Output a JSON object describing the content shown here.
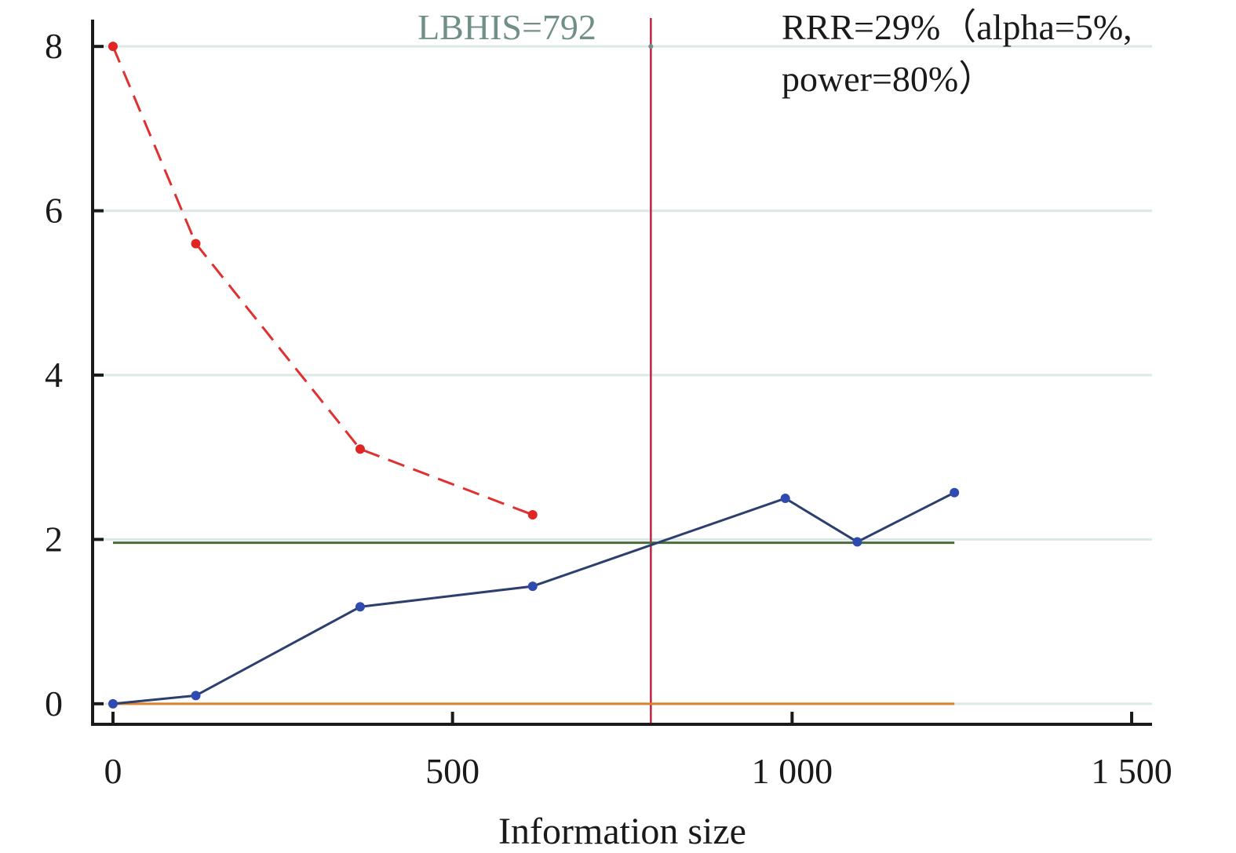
{
  "chart_data": {
    "type": "line",
    "xlabel": "Information size",
    "ylabel": "",
    "xlim": [
      -30,
      1530
    ],
    "ylim": [
      -0.25,
      8.25
    ],
    "x_ticks": [
      0,
      500,
      1000,
      1500
    ],
    "x_tick_labels": [
      "0",
      "500",
      "1 000",
      "1 500"
    ],
    "y_ticks": [
      0,
      2,
      4,
      6,
      8
    ],
    "y_tick_labels": [
      "0",
      "2",
      "4",
      "6",
      "8"
    ],
    "grid": true,
    "series": [
      {
        "role": "z_curve",
        "color": "#2d3f6e",
        "marker_color": "#2f4bb0",
        "dash": "solid",
        "x": [
          0,
          122,
          364,
          618,
          990,
          1096,
          1239
        ],
        "y": [
          0,
          0.1,
          1.18,
          1.43,
          2.5,
          1.97,
          2.57
        ]
      },
      {
        "role": "monitoring_boundary",
        "color": "#e03030",
        "marker_color": "#e02525",
        "dash": "dashed",
        "x": [
          0,
          122,
          364,
          618
        ],
        "y": [
          8,
          5.6,
          3.1,
          2.3
        ]
      },
      {
        "role": "conventional_boundary",
        "color": "#4a6b3a",
        "dash": "solid",
        "x": [
          0,
          1239
        ],
        "y": [
          1.96,
          1.96
        ]
      },
      {
        "role": "null_line",
        "color": "#d9822b",
        "dash": "solid",
        "x": [
          0,
          1239
        ],
        "y": [
          0,
          0
        ]
      }
    ],
    "reference_line": {
      "x": 792,
      "color": "#c0213b"
    },
    "annotations": {
      "lbhis": "LBHIS=792",
      "lbhis_color": "#6f8f88",
      "rrr_line1": "RRR=29%（alpha=5%,",
      "rrr_line2": "power=80%）"
    },
    "colors": {
      "axis": "#1a1a1a",
      "grid": "#dce9e6"
    }
  }
}
